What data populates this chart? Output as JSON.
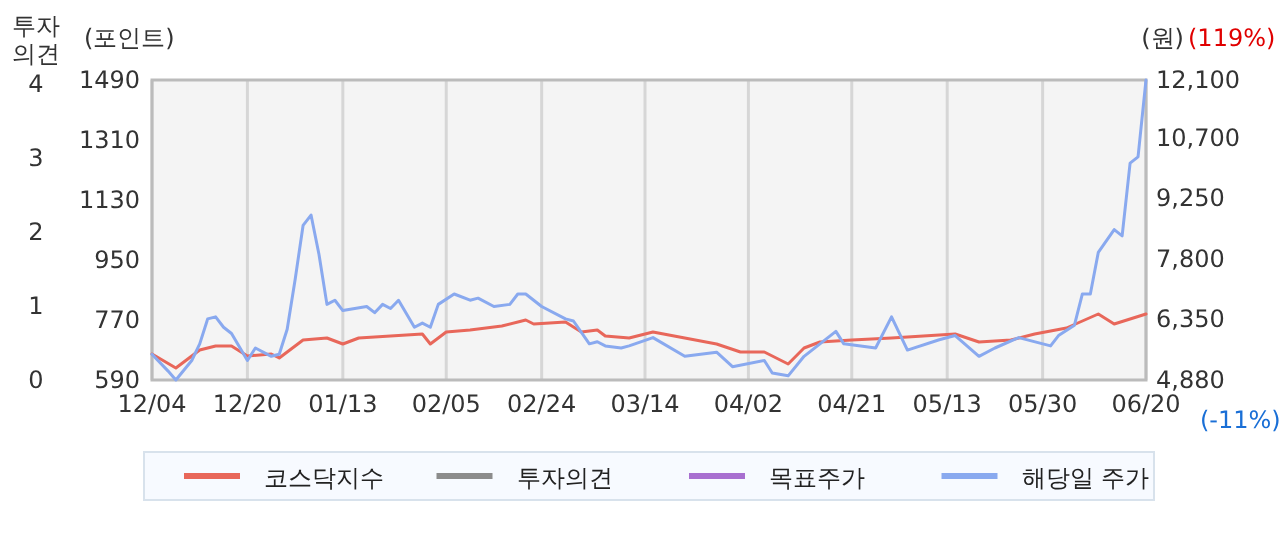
{
  "chart_data": {
    "type": "line",
    "ylabel": "(포인트)",
    "y2label": "(원)",
    "y3label": "투자의견",
    "annotations": [
      "(119%)",
      "(-11%)"
    ],
    "categories": [
      "12/04",
      null,
      null,
      null,
      null,
      null,
      null,
      null,
      null,
      null,
      null,
      null,
      "12/20",
      null,
      null,
      null,
      null,
      null,
      null,
      null,
      null,
      null,
      null,
      null,
      "01/13",
      null,
      null,
      null,
      null,
      null,
      null,
      null,
      null,
      null,
      null,
      null,
      null,
      "02/05",
      null,
      null,
      null,
      null,
      null,
      null,
      null,
      null,
      null,
      null,
      null,
      "02/24",
      null,
      null,
      null,
      null,
      null,
      null,
      null,
      null,
      null,
      null,
      null,
      null,
      "03/14",
      null,
      null,
      null,
      null,
      null,
      null,
      null,
      null,
      null,
      null,
      null,
      null,
      "04/02",
      null,
      null,
      null,
      null,
      null,
      null,
      null,
      null,
      null,
      null,
      null,
      null,
      "04/21",
      null,
      null,
      null,
      null,
      null,
      null,
      null,
      null,
      null,
      null,
      null,
      "05/13",
      null,
      null,
      null,
      null,
      null,
      null,
      null,
      null,
      null,
      null,
      null,
      "05/30",
      null,
      null,
      null,
      null,
      null,
      null,
      null,
      null,
      null,
      null,
      null,
      null,
      "06/20"
    ],
    "ylim": [
      590,
      1490
    ],
    "yticks": [
      590,
      770,
      950,
      1130,
      1310,
      1490
    ],
    "y2lim": [
      4880,
      12100
    ],
    "y2ticks": [
      {
        "value": 4880,
        "label": "4,880"
      },
      {
        "value": 6350,
        "label": "6,350"
      },
      {
        "value": 7800,
        "label": "7,800"
      },
      {
        "value": 9250,
        "label": "9,250"
      },
      {
        "value": 10700,
        "label": "10,700"
      },
      {
        "value": 12100,
        "label": "12,100"
      }
    ],
    "y3lim": [
      0,
      4.05
    ],
    "y3ticks": [
      0,
      1,
      2,
      3,
      4
    ],
    "grid": "x",
    "legend": "bottom",
    "series": [
      {
        "name": "코스닥지수",
        "color": "#e8675a",
        "values": [
          668,
          null,
          null,
          626,
          null,
          null,
          680,
          null,
          692,
          null,
          692,
          null,
          662,
          null,
          null,
          668,
          656,
          null,
          null,
          710,
          null,
          null,
          716,
          null,
          698,
          null,
          716,
          null,
          null,
          null,
          722,
          null,
          null,
          null,
          728,
          698,
          null,
          734,
          null,
          null,
          740,
          null,
          null,
          null,
          752,
          null,
          null,
          770,
          758,
          null,
          null,
          null,
          764,
          null,
          734,
          null,
          740,
          722,
          null,
          null,
          716,
          null,
          null,
          734,
          null,
          null,
          null,
          716,
          null,
          null,
          null,
          698,
          null,
          null,
          674,
          null,
          null,
          674,
          null,
          null,
          638,
          null,
          686,
          null,
          704,
          null,
          null,
          null,
          710,
          null,
          null,
          null,
          null,
          716,
          null,
          null,
          null,
          722,
          null,
          null,
          null,
          728,
          null,
          null,
          704,
          null,
          null,
          null,
          710,
          null,
          null,
          728,
          null,
          null,
          null,
          746,
          null,
          null,
          null,
          788,
          null,
          758,
          null,
          null,
          null,
          788
        ]
      },
      {
        "name": "투자의견",
        "color": "#8c8c8c",
        "axis": "y3",
        "values": [
          null,
          null,
          null,
          null,
          null,
          null,
          null,
          null,
          null,
          null,
          null,
          null,
          null,
          null,
          null,
          null,
          null,
          null,
          null,
          null,
          null,
          null,
          null,
          null,
          null,
          null,
          null,
          null,
          null,
          null,
          null,
          null,
          null,
          null,
          null,
          null,
          null,
          null,
          null,
          null,
          null,
          null,
          null,
          null,
          null,
          null,
          null,
          null,
          null,
          null,
          null,
          null,
          null,
          null,
          null,
          null,
          null,
          null,
          null,
          null,
          null,
          null,
          null,
          null,
          null,
          null,
          null,
          null,
          null,
          null,
          null,
          null,
          null,
          null,
          null,
          null,
          null,
          null,
          null,
          null,
          null,
          null,
          null,
          null,
          null,
          null,
          null,
          null,
          null,
          null,
          null,
          null,
          null,
          null,
          null,
          null,
          null,
          null,
          null,
          null,
          null,
          null,
          null,
          null,
          null,
          null,
          null,
          null,
          null,
          null,
          null,
          null,
          null,
          null,
          null,
          null,
          null,
          null,
          null,
          null,
          null,
          null,
          null,
          null,
          null,
          null
        ]
      },
      {
        "name": "목표주가",
        "color": "#a86fd0",
        "axis": "y2",
        "values": [
          null,
          null,
          null,
          null,
          null,
          null,
          null,
          null,
          null,
          null,
          null,
          null,
          null,
          null,
          null,
          null,
          null,
          null,
          null,
          null,
          null,
          null,
          null,
          null,
          null,
          null,
          null,
          null,
          null,
          null,
          null,
          null,
          null,
          null,
          null,
          null,
          null,
          null,
          null,
          null,
          null,
          null,
          null,
          null,
          null,
          null,
          null,
          null,
          null,
          null,
          null,
          null,
          null,
          null,
          null,
          null,
          null,
          null,
          null,
          null,
          null,
          null,
          null,
          null,
          null,
          null,
          null,
          null,
          null,
          null,
          null,
          null,
          null,
          null,
          null,
          null,
          null,
          null,
          null,
          null,
          null,
          null,
          null,
          null,
          null,
          null,
          null,
          null,
          null,
          null,
          null,
          null,
          null,
          null,
          null,
          null,
          null,
          null,
          null,
          null,
          null,
          null,
          null,
          null,
          null,
          null,
          null,
          null,
          null,
          null,
          null,
          null,
          null,
          null,
          null,
          null,
          null,
          null,
          null,
          null,
          null,
          null,
          null,
          null,
          null,
          null
        ]
      },
      {
        "name": "해당일 주가",
        "color": "#89a9ef",
        "axis": "y2",
        "values": [
          5500,
          null,
          5100,
          4880,
          null,
          5350,
          5750,
          6350,
          6400,
          6150,
          6000,
          null,
          5350,
          5650,
          null,
          5450,
          5500,
          6100,
          7300,
          8600,
          8850,
          7900,
          6700,
          6800,
          6550,
          null,
          null,
          6650,
          6500,
          6700,
          6600,
          6800,
          null,
          6150,
          6250,
          6150,
          6700,
          null,
          6950,
          null,
          6800,
          6850,
          null,
          6650,
          null,
          6700,
          6950,
          6950,
          null,
          6650,
          null,
          null,
          6350,
          6300,
          null,
          5750,
          5800,
          5700,
          null,
          5650,
          5700,
          null,
          null,
          5900,
          null,
          null,
          null,
          5450,
          null,
          null,
          null,
          5550,
          null,
          5200,
          null,
          null,
          null,
          5350,
          5050,
          null,
          4980,
          null,
          5450,
          null,
          5750,
          null,
          6050,
          5750,
          null,
          null,
          null,
          5650,
          null,
          6400,
          null,
          5600,
          null,
          null,
          null,
          5850,
          null,
          5950,
          null,
          null,
          5450,
          null,
          5650,
          null,
          null,
          5900,
          null,
          null,
          null,
          5700,
          5950,
          null,
          6200,
          6950,
          6950,
          7950,
          null,
          8500,
          8350,
          10100,
          10250,
          12100
        ]
      }
    ]
  }
}
